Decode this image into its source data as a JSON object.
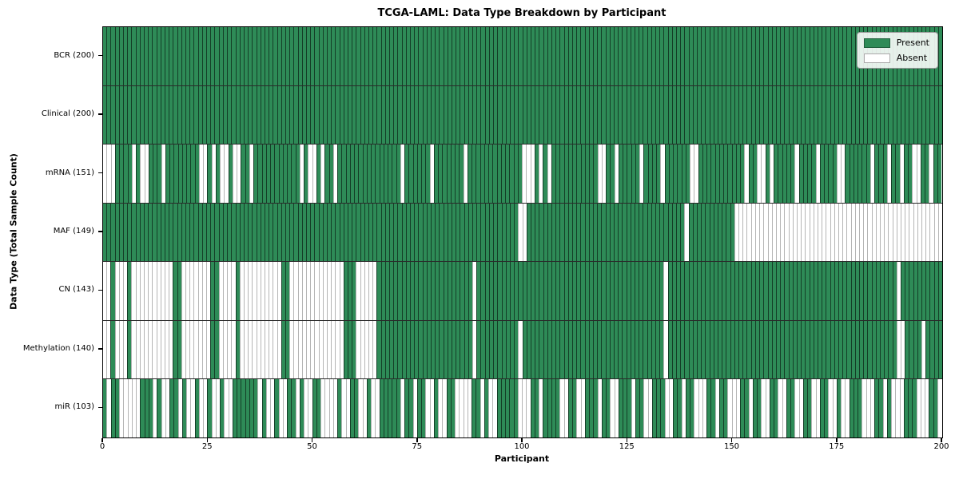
{
  "colors": {
    "present": "#2e8b57",
    "absent": "#ffffff"
  },
  "chart_data": {
    "type": "heatmap",
    "title": "TCGA-LAML: Data Type Breakdown by Participant",
    "xlabel": "Participant",
    "ylabel": "Data Type (Total Sample Count)",
    "x_axis": {
      "range": [
        0,
        200
      ],
      "ticks": [
        0,
        25,
        50,
        75,
        100,
        125,
        150,
        175,
        200
      ]
    },
    "legend_position": "upper right",
    "grid": "cell-borders",
    "legend": [
      {
        "label": "Present",
        "color": "#2e8b57"
      },
      {
        "label": "Absent",
        "color": "#ffffff"
      }
    ],
    "rows": [
      {
        "label": "BCR (200)",
        "name": "BCR",
        "present_count": 200,
        "pattern": "1111111111111111111111111111111111111111111111111111111111111111111111111111111111111111111111111111111111111111111111111111111111111111111111111111111111111111111111111111111111111111111111111111111111"
      },
      {
        "label": "Clinical (200)",
        "name": "Clinical",
        "present_count": 200,
        "pattern": "1111111111111111111111111111111111111111111111111111111111111111111111111111111111111111111111111111111111111111111111111111111111111111111111111111111111111111111111111111111111111111111111111111111111"
      },
      {
        "label": "mRNA (151)",
        "name": "mRNA",
        "present_count": 151,
        "pattern": "0001111010011101111111100101001001101111111111101001011011111111111111101111110111111101111111111111000101011111111111001101111101111011111100111111111110110010111110111101111001111110111011011001101 1"
      },
      {
        "label": "MAF (149)",
        "name": "MAF",
        "present_count": 149,
        "pattern": "1111111111111111111111111111111111111111111111111111111111111111111111111111111111111111111111111111001111111111111111111111111111111111111101111111111100000000000000000000000000000000000000000000000000"
      },
      {
        "label": "CN (143)",
        "name": "CN",
        "present_count": 143,
        "pattern": "0010001000000000011000000011000010000000000110000000000000111000001111111111111111111111101111111111111111111111111111111111111111111110111111111111111111111111111111111111111111111111111111101111111111"
      },
      {
        "label": "Methylation (140)",
        "name": "Methylation",
        "present_count": 140,
        "pattern": "0010001000000000011000000011000010000000000110000000000000111000001111111111111111111111101111111111011111111111111111111111111111111110111111111111111111111111111111111111111111111111111111100111101111"
      },
      {
        "label": "miR (103)",
        "name": "miR",
        "present_count": 103,
        "pattern": "1011000001110100110100100100100111111010010011010011000010011001001111101101100100110000110100111110001101111001100111011001110110011100110110001101100011011001100110011001100100111000110100011100011 0"
      }
    ]
  }
}
